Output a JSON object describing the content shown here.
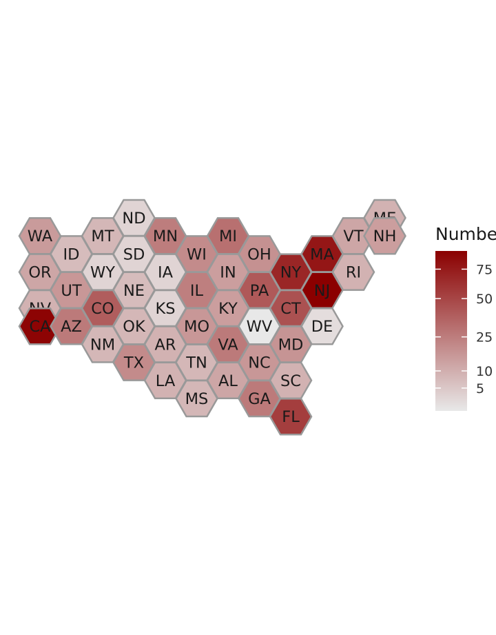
{
  "chart_data": {
    "type": "hexbin-map",
    "legend": {
      "title": "Number",
      "ticks": [
        5,
        10,
        25,
        50,
        75
      ],
      "min": 1,
      "max": 93,
      "color_low": "#e8e8e8",
      "color_high": "#8b0000"
    },
    "states": [
      {
        "abbr": "ME",
        "value": 9
      },
      {
        "abbr": "VT",
        "value": 12
      },
      {
        "abbr": "NH",
        "value": 14
      },
      {
        "abbr": "ND",
        "value": 3
      },
      {
        "abbr": "WA",
        "value": 15
      },
      {
        "abbr": "MT",
        "value": 8
      },
      {
        "abbr": "MN",
        "value": 25
      },
      {
        "abbr": "MI",
        "value": 30
      },
      {
        "abbr": "ID",
        "value": 7
      },
      {
        "abbr": "SD",
        "value": 3
      },
      {
        "abbr": "WI",
        "value": 20
      },
      {
        "abbr": "OH",
        "value": 18
      },
      {
        "abbr": "MA",
        "value": 78
      },
      {
        "abbr": "OR",
        "value": 12
      },
      {
        "abbr": "WY",
        "value": 3
      },
      {
        "abbr": "IA",
        "value": 3
      },
      {
        "abbr": "IN",
        "value": 14
      },
      {
        "abbr": "NY",
        "value": 68
      },
      {
        "abbr": "RI",
        "value": 9
      },
      {
        "abbr": "UT",
        "value": 16
      },
      {
        "abbr": "NE",
        "value": 7
      },
      {
        "abbr": "IL",
        "value": 24
      },
      {
        "abbr": "PA",
        "value": 40
      },
      {
        "abbr": "NJ",
        "value": 93
      },
      {
        "abbr": "NV",
        "value": 9
      },
      {
        "abbr": "CO",
        "value": 38
      },
      {
        "abbr": "KS",
        "value": 3
      },
      {
        "abbr": "KY",
        "value": 14
      },
      {
        "abbr": "CT",
        "value": 44
      },
      {
        "abbr": "CA",
        "value": 90
      },
      {
        "abbr": "AZ",
        "value": 26
      },
      {
        "abbr": "OK",
        "value": 8
      },
      {
        "abbr": "MO",
        "value": 16
      },
      {
        "abbr": "WV",
        "value": 1
      },
      {
        "abbr": "DE",
        "value": 2
      },
      {
        "abbr": "NM",
        "value": 8
      },
      {
        "abbr": "AR",
        "value": 9
      },
      {
        "abbr": "VA",
        "value": 26
      },
      {
        "abbr": "MD",
        "value": 17
      },
      {
        "abbr": "TX",
        "value": 20
      },
      {
        "abbr": "TN",
        "value": 8
      },
      {
        "abbr": "NC",
        "value": 16
      },
      {
        "abbr": "LA",
        "value": 9
      },
      {
        "abbr": "AL",
        "value": 12
      },
      {
        "abbr": "SC",
        "value": 9
      },
      {
        "abbr": "MS",
        "value": 8
      },
      {
        "abbr": "GA",
        "value": 26
      },
      {
        "abbr": "FL",
        "value": 54
      }
    ]
  }
}
